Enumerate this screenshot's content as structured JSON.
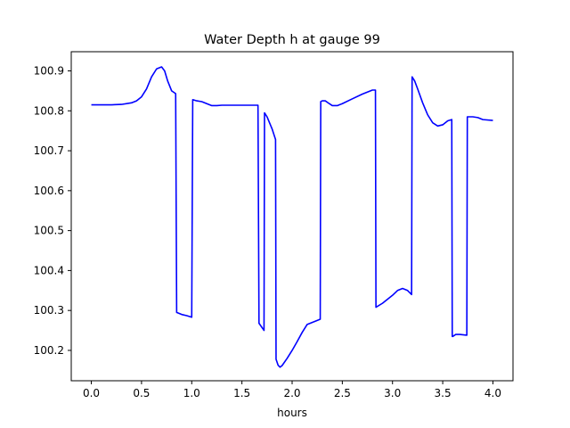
{
  "chart_data": {
    "type": "line",
    "title": "Water Depth h at gauge 99",
    "xlabel": "hours",
    "ylabel": "",
    "xlim": [
      -0.2,
      4.2
    ],
    "ylim": [
      100.124,
      100.948
    ],
    "x_ticks": [
      0.0,
      0.5,
      1.0,
      1.5,
      2.0,
      2.5,
      3.0,
      3.5,
      4.0
    ],
    "x_tick_labels": [
      "0.0",
      "0.5",
      "1.0",
      "1.5",
      "2.0",
      "2.5",
      "3.0",
      "3.5",
      "4.0"
    ],
    "y_ticks": [
      100.2,
      100.3,
      100.4,
      100.5,
      100.6,
      100.7,
      100.8,
      100.9
    ],
    "y_tick_labels": [
      "100.2",
      "100.3",
      "100.4",
      "100.5",
      "100.6",
      "100.7",
      "100.8",
      "100.9"
    ],
    "grid": false,
    "series": [
      {
        "color": "#0000ff",
        "x": [
          0.0,
          0.1,
          0.2,
          0.3,
          0.4,
          0.45,
          0.5,
          0.55,
          0.6,
          0.65,
          0.7,
          0.73,
          0.76,
          0.8,
          0.84,
          0.85,
          0.9,
          0.95,
          1.0,
          1.01,
          1.05,
          1.1,
          1.15,
          1.2,
          1.25,
          1.3,
          1.35,
          1.4,
          1.5,
          1.6,
          1.66,
          1.67,
          1.72,
          1.725,
          1.75,
          1.8,
          1.835,
          1.84,
          1.86,
          1.88,
          1.9,
          1.95,
          2.0,
          2.05,
          2.1,
          2.15,
          2.2,
          2.25,
          2.28,
          2.285,
          2.3,
          2.33,
          2.37,
          2.4,
          2.45,
          2.5,
          2.6,
          2.7,
          2.8,
          2.83,
          2.835,
          2.9,
          3.0,
          3.05,
          3.1,
          3.15,
          3.19,
          3.195,
          3.22,
          3.25,
          3.3,
          3.35,
          3.4,
          3.45,
          3.5,
          3.55,
          3.59,
          3.595,
          3.6,
          3.63,
          3.67,
          3.74,
          3.745,
          3.77,
          3.8,
          3.85,
          3.9,
          4.0
        ],
        "y": [
          100.815,
          100.815,
          100.815,
          100.816,
          100.82,
          100.825,
          100.835,
          100.855,
          100.885,
          100.905,
          100.91,
          100.9,
          100.875,
          100.85,
          100.843,
          100.295,
          100.29,
          100.287,
          100.283,
          100.828,
          100.825,
          100.823,
          100.818,
          100.813,
          100.813,
          100.814,
          100.814,
          100.814,
          100.814,
          100.814,
          100.814,
          100.268,
          100.25,
          100.795,
          100.785,
          100.755,
          100.728,
          100.178,
          100.163,
          100.158,
          100.162,
          100.18,
          100.2,
          100.222,
          100.245,
          100.265,
          100.27,
          100.275,
          100.278,
          100.823,
          100.825,
          100.825,
          100.818,
          100.813,
          100.813,
          100.818,
          100.83,
          100.842,
          100.852,
          100.852,
          100.308,
          100.318,
          100.338,
          100.35,
          100.355,
          100.35,
          100.34,
          100.885,
          100.875,
          100.855,
          100.82,
          100.79,
          100.77,
          100.762,
          100.765,
          100.775,
          100.778,
          100.235,
          100.235,
          100.24,
          100.24,
          100.238,
          100.785,
          100.785,
          100.785,
          100.783,
          100.778,
          100.776
        ]
      }
    ]
  }
}
